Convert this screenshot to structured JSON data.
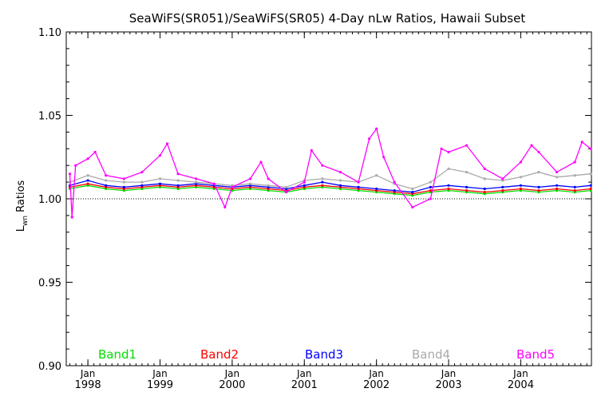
{
  "chart_data": {
    "type": "line",
    "title": "SeaWiFS(SR051)/SeaWiFS(SR05) 4-Day nLw Ratios, Hawaii Subset",
    "ylabel_main": "L",
    "ylabel_sub": "wn",
    "ylabel_rest": " Ratios",
    "xlabel": "",
    "ylim": [
      0.9,
      1.1
    ],
    "xlim": [
      1997.7,
      2004.98
    ],
    "y_ticks": [
      "0.90",
      "0.95",
      "1.00",
      "1.05",
      "1.10"
    ],
    "y_tick_values": [
      0.9,
      0.95,
      1.0,
      1.05,
      1.1
    ],
    "x_ticks": [
      {
        "month": "Jan",
        "year": "1998",
        "value": 1998.0
      },
      {
        "month": "Jan",
        "year": "1999",
        "value": 1999.0
      },
      {
        "month": "Jan",
        "year": "2000",
        "value": 2000.0
      },
      {
        "month": "Jan",
        "year": "2001",
        "value": 2001.0
      },
      {
        "month": "Jan",
        "year": "2002",
        "value": 2002.0
      },
      {
        "month": "Jan",
        "year": "2003",
        "value": 2003.0
      },
      {
        "month": "Jan",
        "year": "2004",
        "value": 2004.0
      }
    ],
    "reference_line": 1.0,
    "legend_placement": "bottom",
    "grid": false,
    "series": [
      {
        "name": "Band1",
        "color": "#00dd00",
        "values": [
          [
            1997.75,
            1.006
          ],
          [
            1998.0,
            1.008
          ],
          [
            1998.25,
            1.006
          ],
          [
            1998.5,
            1.005
          ],
          [
            1998.75,
            1.006
          ],
          [
            1999.0,
            1.007
          ],
          [
            1999.25,
            1.006
          ],
          [
            1999.5,
            1.007
          ],
          [
            1999.75,
            1.006
          ],
          [
            2000.0,
            1.005
          ],
          [
            2000.25,
            1.006
          ],
          [
            2000.5,
            1.005
          ],
          [
            2000.75,
            1.004
          ],
          [
            2001.0,
            1.006
          ],
          [
            2001.25,
            1.007
          ],
          [
            2001.5,
            1.006
          ],
          [
            2001.75,
            1.005
          ],
          [
            2002.0,
            1.004
          ],
          [
            2002.25,
            1.003
          ],
          [
            2002.5,
            1.002
          ],
          [
            2002.75,
            1.004
          ],
          [
            2003.0,
            1.005
          ],
          [
            2003.25,
            1.004
          ],
          [
            2003.5,
            1.003
          ],
          [
            2003.75,
            1.004
          ],
          [
            2004.0,
            1.005
          ],
          [
            2004.25,
            1.004
          ],
          [
            2004.5,
            1.005
          ],
          [
            2004.75,
            1.004
          ],
          [
            2004.97,
            1.005
          ]
        ]
      },
      {
        "name": "Band2",
        "color": "#ff0000",
        "values": [
          [
            1997.75,
            1.007
          ],
          [
            1998.0,
            1.009
          ],
          [
            1998.25,
            1.007
          ],
          [
            1998.5,
            1.006
          ],
          [
            1998.75,
            1.007
          ],
          [
            1999.0,
            1.008
          ],
          [
            1999.25,
            1.007
          ],
          [
            1999.5,
            1.008
          ],
          [
            1999.75,
            1.007
          ],
          [
            2000.0,
            1.006
          ],
          [
            2000.25,
            1.007
          ],
          [
            2000.5,
            1.006
          ],
          [
            2000.75,
            1.005
          ],
          [
            2001.0,
            1.007
          ],
          [
            2001.25,
            1.008
          ],
          [
            2001.5,
            1.007
          ],
          [
            2001.75,
            1.006
          ],
          [
            2002.0,
            1.005
          ],
          [
            2002.25,
            1.004
          ],
          [
            2002.5,
            1.003
          ],
          [
            2002.75,
            1.005
          ],
          [
            2003.0,
            1.006
          ],
          [
            2003.25,
            1.005
          ],
          [
            2003.5,
            1.004
          ],
          [
            2003.75,
            1.005
          ],
          [
            2004.0,
            1.006
          ],
          [
            2004.25,
            1.005
          ],
          [
            2004.5,
            1.006
          ],
          [
            2004.75,
            1.005
          ],
          [
            2004.97,
            1.006
          ]
        ]
      },
      {
        "name": "Band3",
        "color": "#0000ff",
        "values": [
          [
            1997.75,
            1.008
          ],
          [
            1998.0,
            1.011
          ],
          [
            1998.25,
            1.008
          ],
          [
            1998.5,
            1.007
          ],
          [
            1998.75,
            1.008
          ],
          [
            1999.0,
            1.009
          ],
          [
            1999.25,
            1.008
          ],
          [
            1999.5,
            1.009
          ],
          [
            1999.75,
            1.008
          ],
          [
            2000.0,
            1.007
          ],
          [
            2000.25,
            1.008
          ],
          [
            2000.5,
            1.007
          ],
          [
            2000.75,
            1.006
          ],
          [
            2001.0,
            1.008
          ],
          [
            2001.25,
            1.01
          ],
          [
            2001.5,
            1.008
          ],
          [
            2001.75,
            1.007
          ],
          [
            2002.0,
            1.006
          ],
          [
            2002.25,
            1.005
          ],
          [
            2002.5,
            1.004
          ],
          [
            2002.75,
            1.007
          ],
          [
            2003.0,
            1.008
          ],
          [
            2003.25,
            1.007
          ],
          [
            2003.5,
            1.006
          ],
          [
            2003.75,
            1.007
          ],
          [
            2004.0,
            1.008
          ],
          [
            2004.25,
            1.007
          ],
          [
            2004.5,
            1.008
          ],
          [
            2004.75,
            1.007
          ],
          [
            2004.97,
            1.008
          ]
        ]
      },
      {
        "name": "Band4",
        "color": "#aaaaaa",
        "values": [
          [
            1997.75,
            1.01
          ],
          [
            1998.0,
            1.014
          ],
          [
            1998.25,
            1.011
          ],
          [
            1998.5,
            1.01
          ],
          [
            1998.75,
            1.01
          ],
          [
            1999.0,
            1.012
          ],
          [
            1999.25,
            1.011
          ],
          [
            1999.5,
            1.01
          ],
          [
            1999.75,
            1.009
          ],
          [
            2000.0,
            1.008
          ],
          [
            2000.25,
            1.009
          ],
          [
            2000.5,
            1.008
          ],
          [
            2000.75,
            1.007
          ],
          [
            2001.0,
            1.011
          ],
          [
            2001.25,
            1.012
          ],
          [
            2001.5,
            1.011
          ],
          [
            2001.75,
            1.01
          ],
          [
            2002.0,
            1.014
          ],
          [
            2002.25,
            1.009
          ],
          [
            2002.5,
            1.006
          ],
          [
            2002.75,
            1.01
          ],
          [
            2003.0,
            1.018
          ],
          [
            2003.25,
            1.016
          ],
          [
            2003.5,
            1.012
          ],
          [
            2003.75,
            1.011
          ],
          [
            2004.0,
            1.013
          ],
          [
            2004.25,
            1.016
          ],
          [
            2004.5,
            1.013
          ],
          [
            2004.75,
            1.014
          ],
          [
            2004.97,
            1.015
          ]
        ]
      },
      {
        "name": "Band5",
        "color": "#ff00ff",
        "values": [
          [
            1997.75,
            1.015
          ],
          [
            1997.78,
            0.989
          ],
          [
            1997.83,
            1.02
          ],
          [
            1998.0,
            1.024
          ],
          [
            1998.1,
            1.028
          ],
          [
            1998.25,
            1.014
          ],
          [
            1998.5,
            1.012
          ],
          [
            1998.75,
            1.016
          ],
          [
            1999.0,
            1.026
          ],
          [
            1999.1,
            1.033
          ],
          [
            1999.25,
            1.015
          ],
          [
            1999.5,
            1.012
          ],
          [
            1999.75,
            1.009
          ],
          [
            1999.9,
            0.995
          ],
          [
            2000.0,
            1.007
          ],
          [
            2000.25,
            1.012
          ],
          [
            2000.4,
            1.022
          ],
          [
            2000.5,
            1.012
          ],
          [
            2000.75,
            1.004
          ],
          [
            2001.0,
            1.01
          ],
          [
            2001.1,
            1.029
          ],
          [
            2001.25,
            1.02
          ],
          [
            2001.5,
            1.016
          ],
          [
            2001.75,
            1.01
          ],
          [
            2001.9,
            1.036
          ],
          [
            2002.0,
            1.042
          ],
          [
            2002.1,
            1.025
          ],
          [
            2002.25,
            1.01
          ],
          [
            2002.5,
            0.995
          ],
          [
            2002.75,
            1.0
          ],
          [
            2002.9,
            1.03
          ],
          [
            2003.0,
            1.028
          ],
          [
            2003.25,
            1.032
          ],
          [
            2003.5,
            1.018
          ],
          [
            2003.75,
            1.012
          ],
          [
            2004.0,
            1.022
          ],
          [
            2004.15,
            1.032
          ],
          [
            2004.25,
            1.028
          ],
          [
            2004.5,
            1.016
          ],
          [
            2004.75,
            1.022
          ],
          [
            2004.85,
            1.034
          ],
          [
            2004.97,
            1.03
          ]
        ]
      }
    ]
  }
}
